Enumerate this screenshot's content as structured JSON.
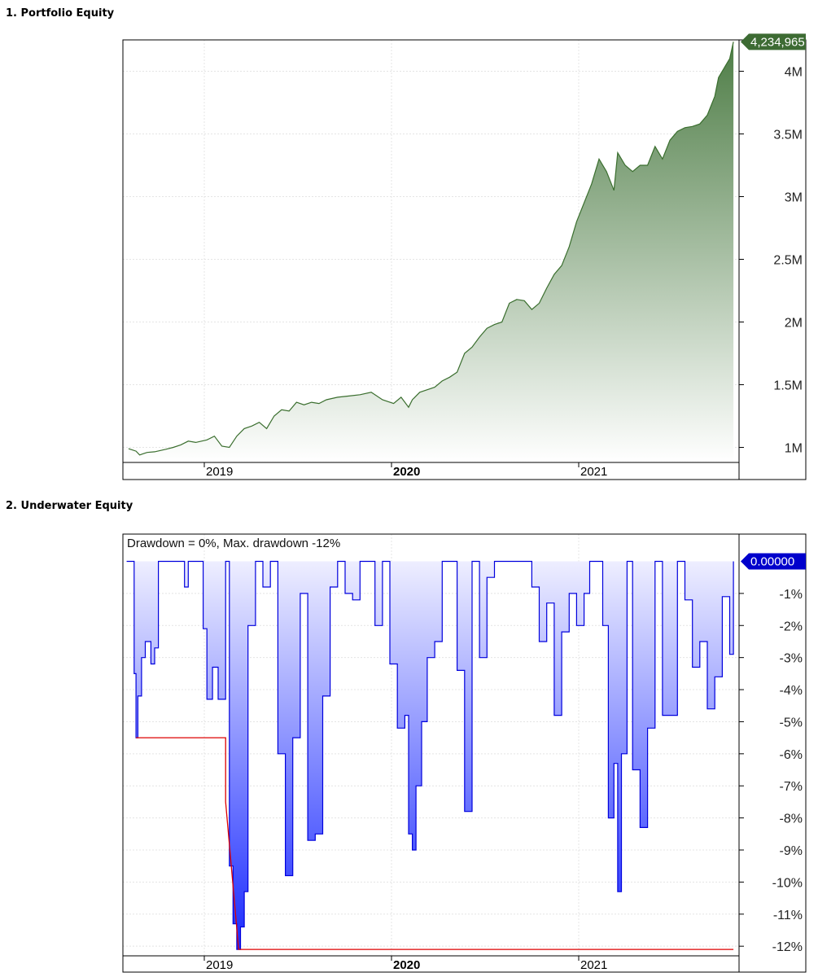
{
  "panels": [
    {
      "title": "1. Portfolio Equity"
    },
    {
      "title": "2. Underwater Equity"
    }
  ],
  "colors": {
    "equity_line": "#3a6e2e",
    "equity_fill_top": "#4e7d46",
    "equity_fill_bottom": "#ffffff",
    "equity_tag": "#3d6b33",
    "underwater_line": "#0000dd",
    "underwater_fill_top": "#eeeeff",
    "underwater_fill_bottom": "#1a2aff",
    "underwater_tag": "#0000cc",
    "max_dd_line": "#dd0000",
    "grid": "#e4e4e4",
    "frame": "#000000"
  },
  "chart_data": [
    {
      "type": "area",
      "title": "1. Portfolio Equity",
      "x_ticks": [
        {
          "label": "2019",
          "bold": false
        },
        {
          "label": "2020",
          "bold": true
        },
        {
          "label": "2021",
          "bold": false
        }
      ],
      "y_ticks": [
        "4M",
        "3.5M",
        "3M",
        "2.5M",
        "2M",
        "1.5M",
        "1M"
      ],
      "y_tick_values": [
        4000000,
        3500000,
        3000000,
        2500000,
        2000000,
        1500000,
        1000000
      ],
      "ylim": [
        880000,
        4250000
      ],
      "x_domain": [
        2018.45,
        2021.75
      ],
      "last_value_label": "4,234,965",
      "x": [
        2018.48,
        2018.52,
        2018.54,
        2018.56,
        2018.58,
        2018.62,
        2018.68,
        2018.72,
        2018.76,
        2018.8,
        2018.84,
        2018.9,
        2018.94,
        2018.98,
        2019.02,
        2019.06,
        2019.1,
        2019.14,
        2019.18,
        2019.22,
        2019.26,
        2019.3,
        2019.34,
        2019.38,
        2019.42,
        2019.46,
        2019.5,
        2019.54,
        2019.6,
        2019.66,
        2019.72,
        2019.78,
        2019.84,
        2019.9,
        2019.94,
        2019.98,
        2020.0,
        2020.04,
        2020.08,
        2020.12,
        2020.16,
        2020.2,
        2020.24,
        2020.28,
        2020.32,
        2020.36,
        2020.4,
        2020.44,
        2020.48,
        2020.52,
        2020.56,
        2020.6,
        2020.64,
        2020.68,
        2020.72,
        2020.76,
        2020.8,
        2020.84,
        2020.88,
        2020.92,
        2020.96,
        2021.0,
        2021.04,
        2021.08,
        2021.1,
        2021.14,
        2021.18,
        2021.22,
        2021.26,
        2021.3,
        2021.34,
        2021.38,
        2021.42,
        2021.46,
        2021.5,
        2021.54,
        2021.58,
        2021.62,
        2021.64,
        2021.68,
        2021.7,
        2021.72
      ],
      "values": [
        990000,
        970000,
        940000,
        950000,
        960000,
        965000,
        985000,
        1000000,
        1020000,
        1050000,
        1040000,
        1060000,
        1090000,
        1010000,
        1000000,
        1090000,
        1150000,
        1170000,
        1200000,
        1150000,
        1250000,
        1300000,
        1290000,
        1360000,
        1340000,
        1360000,
        1350000,
        1380000,
        1400000,
        1410000,
        1420000,
        1440000,
        1380000,
        1350000,
        1400000,
        1320000,
        1380000,
        1440000,
        1460000,
        1480000,
        1530000,
        1560000,
        1600000,
        1750000,
        1800000,
        1880000,
        1950000,
        1980000,
        2000000,
        2150000,
        2180000,
        2170000,
        2100000,
        2150000,
        2270000,
        2380000,
        2450000,
        2600000,
        2800000,
        2950000,
        3100000,
        3300000,
        3200000,
        3050000,
        3350000,
        3250000,
        3200000,
        3250000,
        3250000,
        3400000,
        3300000,
        3450000,
        3520000,
        3550000,
        3560000,
        3580000,
        3650000,
        3800000,
        3950000,
        4050000,
        4100000,
        4234965
      ]
    },
    {
      "type": "area",
      "title": "2. Underwater Equity",
      "annotation": "Drawdown = 0%, Max. drawdown -12%",
      "x_ticks": [
        {
          "label": "2019",
          "bold": false
        },
        {
          "label": "2020",
          "bold": true
        },
        {
          "label": "2021",
          "bold": false
        }
      ],
      "y_ticks": [
        "-1%",
        "-2%",
        "-3%",
        "-4%",
        "-5%",
        "-6%",
        "-7%",
        "-8%",
        "-9%",
        "-10%",
        "-11%",
        "-12%"
      ],
      "y_tick_values": [
        -1,
        -2,
        -3,
        -4,
        -5,
        -6,
        -7,
        -8,
        -9,
        -10,
        -11,
        -12
      ],
      "ylim": [
        -12.3,
        0.85
      ],
      "x_domain": [
        2018.45,
        2021.75
      ],
      "last_value_label": "0.00000",
      "max_drawdown_steps": [
        [
          2018.52,
          -5.5
        ],
        [
          2019.0,
          -5.5
        ],
        [
          2019.0,
          -7.5
        ],
        [
          2019.07,
          -12.1
        ],
        [
          2021.72,
          -12.1
        ]
      ],
      "x": [
        2018.47,
        2018.5,
        2018.51,
        2018.52,
        2018.53,
        2018.55,
        2018.57,
        2018.6,
        2018.62,
        2018.64,
        2018.66,
        2018.7,
        2018.74,
        2018.78,
        2018.8,
        2018.84,
        2018.88,
        2018.9,
        2018.93,
        2018.96,
        2018.99,
        2019.0,
        2019.02,
        2019.04,
        2019.06,
        2019.08,
        2019.1,
        2019.12,
        2019.16,
        2019.2,
        2019.24,
        2019.28,
        2019.32,
        2019.36,
        2019.4,
        2019.44,
        2019.48,
        2019.52,
        2019.56,
        2019.6,
        2019.64,
        2019.68,
        2019.72,
        2019.76,
        2019.8,
        2019.84,
        2019.88,
        2019.92,
        2019.96,
        2019.98,
        2020.0,
        2020.02,
        2020.05,
        2020.08,
        2020.12,
        2020.16,
        2020.2,
        2020.24,
        2020.28,
        2020.32,
        2020.36,
        2020.4,
        2020.44,
        2020.48,
        2020.52,
        2020.56,
        2020.6,
        2020.64,
        2020.68,
        2020.72,
        2020.76,
        2020.8,
        2020.84,
        2020.88,
        2020.92,
        2020.95,
        2020.98,
        2021.0,
        2021.02,
        2021.05,
        2021.08,
        2021.1,
        2021.12,
        2021.15,
        2021.18,
        2021.22,
        2021.26,
        2021.3,
        2021.34,
        2021.38,
        2021.42,
        2021.46,
        2021.5,
        2021.54,
        2021.58,
        2021.62,
        2021.66,
        2021.7,
        2021.72
      ],
      "values": [
        0,
        0,
        -3.5,
        -5.5,
        -4.2,
        -3.0,
        -2.5,
        -3.2,
        -2.7,
        0,
        0,
        0,
        0,
        -0.8,
        0,
        0,
        -2.1,
        -4.3,
        -3.3,
        -4.3,
        -4.3,
        0,
        -9.5,
        -11.3,
        -12.1,
        -11.4,
        -10.3,
        -2.0,
        0,
        -0.8,
        0,
        -6.0,
        -9.8,
        -5.5,
        -1.0,
        -8.7,
        -8.5,
        -4.2,
        -0.8,
        0,
        -1.0,
        -1.2,
        0,
        0,
        -2.0,
        0,
        -3.2,
        -5.2,
        -4.8,
        -8.5,
        -9.0,
        -7.0,
        -5.0,
        -3.0,
        -2.5,
        0,
        0,
        -3.4,
        -7.8,
        0,
        -3.0,
        -0.5,
        0,
        0,
        0,
        0,
        0,
        -0.8,
        -2.5,
        -1.3,
        -4.8,
        -2.2,
        -1.0,
        -2.0,
        -1.0,
        0,
        0,
        0,
        -2.0,
        -8.0,
        -6.3,
        -10.3,
        -6.0,
        0,
        -6.5,
        -8.3,
        -5.2,
        0,
        -4.8,
        -4.8,
        0,
        -1.2,
        -3.3,
        -2.5,
        -4.6,
        -3.6,
        -1.1,
        -2.9,
        0
      ]
    }
  ]
}
